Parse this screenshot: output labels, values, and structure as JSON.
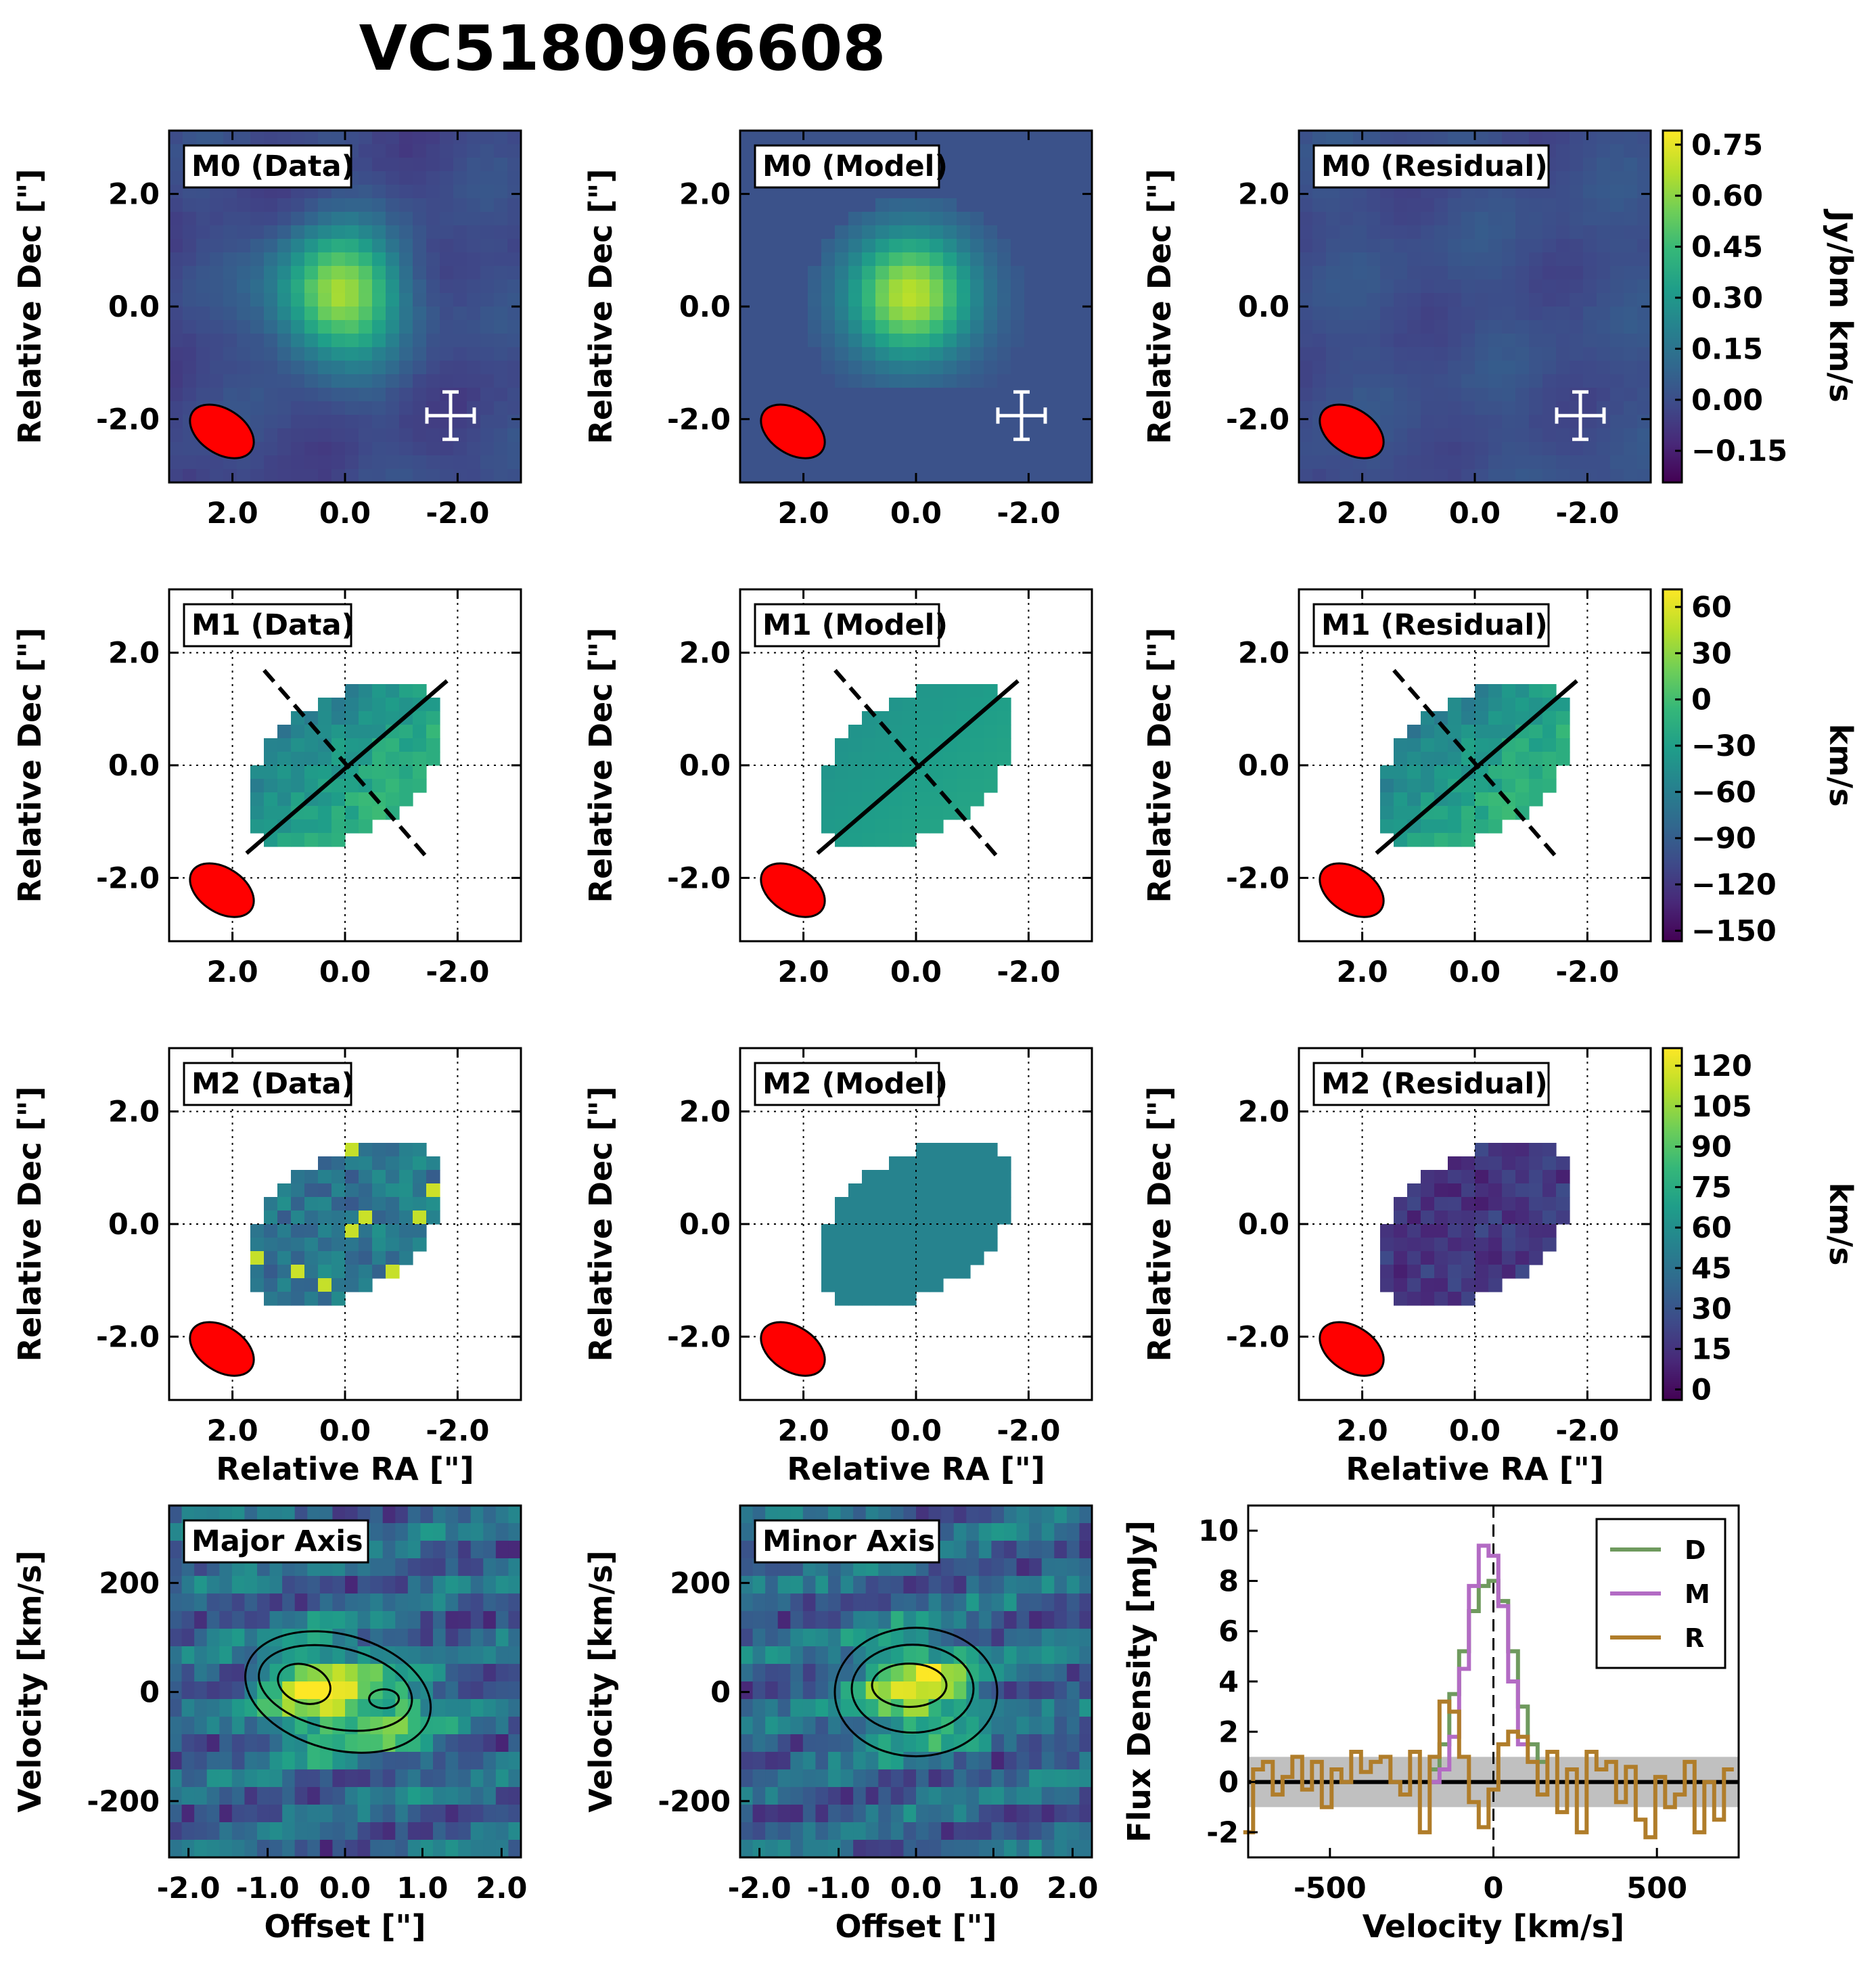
{
  "title": "VC5180966608",
  "colors": {
    "viridis": [
      "#440154",
      "#482878",
      "#3e4a89",
      "#31688e",
      "#26828e",
      "#1f9e89",
      "#35b779",
      "#6ece58",
      "#b5de2b",
      "#fde725"
    ],
    "beam": "#ff0000",
    "data_line": "#6f9a5e",
    "model_line": "#b36bc4",
    "residual_line": "#b07d2a",
    "rms_band": "#c0c0c0"
  },
  "axes_labels": {
    "dec": "Relative Dec [\"]",
    "ra": "Relative RA [\"]",
    "velocity": "Velocity [km/s]",
    "offset": "Offset [\"]",
    "flux": "Flux Density [mJy]",
    "velocity_spec": "Velocity [km/s]"
  },
  "panels": [
    {
      "label": "M0 (Data)"
    },
    {
      "label": "M0 (Model)"
    },
    {
      "label": "M0 (Residual)"
    },
    {
      "label": "M1 (Data)"
    },
    {
      "label": "M1 (Model)"
    },
    {
      "label": "M1 (Residual)"
    },
    {
      "label": "M2 (Data)"
    },
    {
      "label": "M2 (Model)"
    },
    {
      "label": "M2 (Residual)"
    },
    {
      "label": "Major Axis"
    },
    {
      "label": "Minor Axis"
    }
  ],
  "map_ticks": [
    "2.0",
    "0.0",
    "-2.0"
  ],
  "offset_ticks": [
    "-2.0",
    "-1.0",
    "0.0",
    "1.0",
    "2.0"
  ],
  "pv_vel_ticks": [
    "200",
    "0",
    "-200"
  ],
  "colorbars": [
    {
      "unit": "Jy/bm km/s",
      "ticks": [
        "0.75",
        "0.60",
        "0.45",
        "0.30",
        "0.15",
        "0.00",
        "−0.15"
      ]
    },
    {
      "unit": "km/s",
      "ticks": [
        "60",
        "30",
        "0",
        "−30",
        "−60",
        "−90",
        "−120",
        "−150"
      ]
    },
    {
      "unit": "km/s",
      "ticks": [
        "120",
        "105",
        "90",
        "75",
        "60",
        "45",
        "30",
        "15",
        "0"
      ]
    }
  ],
  "chart_data": {
    "type": "line",
    "title": "",
    "xlabel": "Velocity [km/s]",
    "ylabel": "Flux Density [mJy]",
    "xlim": [
      -750,
      750
    ],
    "ylim": [
      -3,
      11
    ],
    "x_ticks": [
      "-500",
      "0",
      "500"
    ],
    "y_ticks": [
      "10",
      "8",
      "6",
      "4",
      "2",
      "0",
      "-2"
    ],
    "rms": 1.0,
    "legend": [
      "D",
      "M",
      "R"
    ],
    "velocity": [
      -750,
      -720,
      -690,
      -660,
      -630,
      -600,
      -570,
      -540,
      -510,
      -480,
      -450,
      -420,
      -390,
      -360,
      -330,
      -300,
      -270,
      -240,
      -210,
      -180,
      -150,
      -120,
      -90,
      -60,
      -30,
      0,
      30,
      60,
      90,
      120,
      150,
      180,
      210,
      240,
      270,
      300,
      330,
      360,
      390,
      420,
      450,
      480,
      510,
      540,
      570,
      600,
      630,
      660,
      690,
      720
    ],
    "series": [
      {
        "name": "D",
        "values": [
          null,
          null,
          null,
          null,
          null,
          null,
          null,
          null,
          null,
          null,
          null,
          null,
          null,
          null,
          null,
          null,
          null,
          null,
          null,
          0.5,
          1.5,
          3.5,
          5.2,
          6.8,
          7.8,
          8.0,
          7.2,
          5.2,
          3.0,
          1.5,
          0.8,
          null,
          null,
          null,
          null,
          null,
          null,
          null,
          null,
          null,
          null,
          null,
          null,
          null,
          null,
          null,
          null,
          null,
          null,
          null
        ]
      },
      {
        "name": "M",
        "values": [
          null,
          null,
          null,
          null,
          null,
          null,
          null,
          null,
          null,
          null,
          null,
          null,
          null,
          null,
          null,
          null,
          null,
          null,
          null,
          0.0,
          0.5,
          1.8,
          4.5,
          7.8,
          9.4,
          9.0,
          7.0,
          4.0,
          1.5,
          null,
          null,
          null,
          null,
          null,
          null,
          null,
          null,
          null,
          null,
          null,
          null,
          null,
          null,
          null,
          null,
          null,
          null,
          null,
          null,
          null
        ]
      },
      {
        "name": "R",
        "values": [
          -2.0,
          0.5,
          0.8,
          -0.5,
          0.2,
          1.0,
          -0.3,
          0.8,
          -1.0,
          0.5,
          0.0,
          1.2,
          0.4,
          0.8,
          1.0,
          0.0,
          -0.5,
          1.2,
          -2.0,
          1.0,
          3.2,
          2.8,
          1.0,
          -0.8,
          -1.8,
          -0.3,
          1.5,
          2.0,
          1.8,
          0.8,
          -0.5,
          1.2,
          -1.2,
          0.5,
          -2.0,
          1.2,
          0.5,
          0.8,
          -0.8,
          0.6,
          -1.5,
          -2.2,
          0.2,
          -1.0,
          -0.5,
          0.8,
          -2.0,
          0.0,
          -1.5,
          0.5
        ]
      }
    ]
  }
}
